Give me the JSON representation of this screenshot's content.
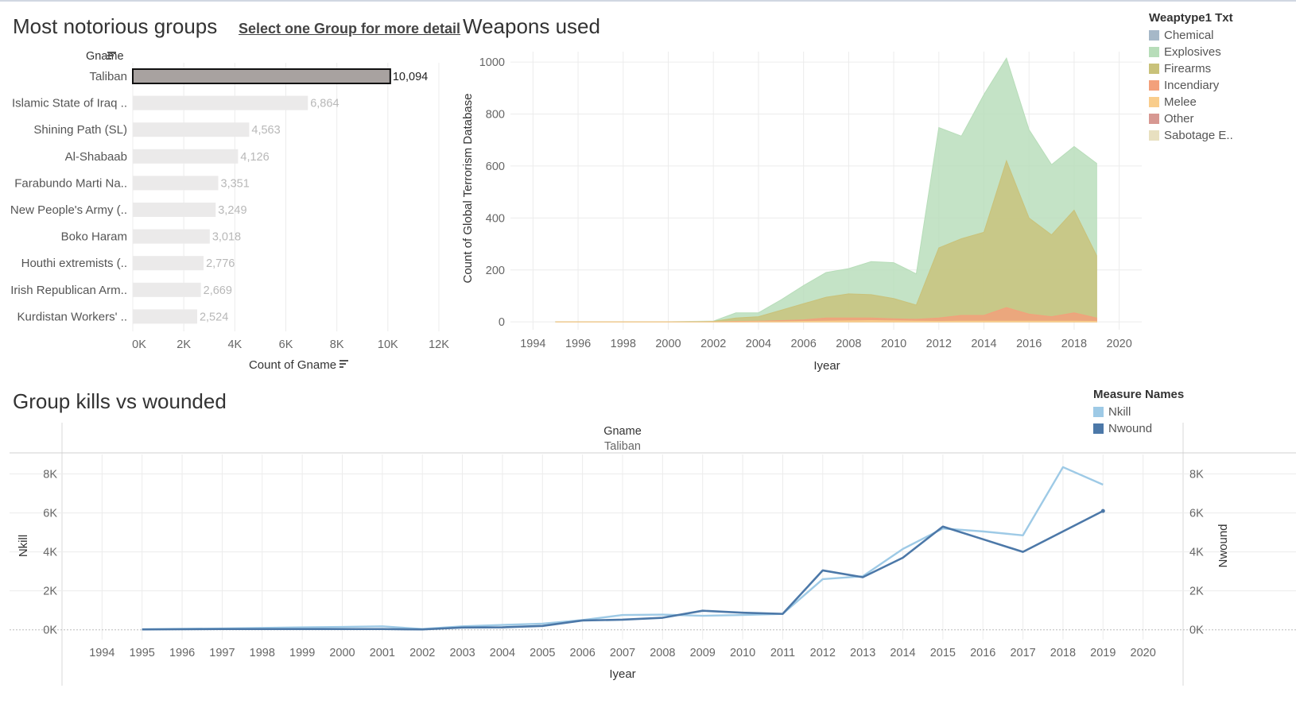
{
  "groups_panel": {
    "title": "Most notorious groups",
    "link": "Select one Group for more detail",
    "column_header": "Gname",
    "xlabel": "Count of Gname"
  },
  "weapons_panel": {
    "title": "Weapons used"
  },
  "kills_panel": {
    "title": "Group kills vs wounded"
  },
  "weapons_legend": {
    "title": "Weaptype1 Txt",
    "items": [
      {
        "label": "Chemical",
        "color": "#a6b8c8"
      },
      {
        "label": "Explosives",
        "color": "#b7ddb9"
      },
      {
        "label": "Firearms",
        "color": "#c9c27a"
      },
      {
        "label": "Incendiary",
        "color": "#f3a07b"
      },
      {
        "label": "Melee",
        "color": "#f9cd8c"
      },
      {
        "label": "Other",
        "color": "#d79892"
      },
      {
        "label": "Sabotage E..",
        "color": "#e8e0c0"
      }
    ]
  },
  "measure_legend": {
    "title": "Measure Names",
    "items": [
      {
        "label": "Nkill",
        "color": "#9ecae6"
      },
      {
        "label": "Nwound",
        "color": "#4c78a8"
      }
    ]
  },
  "chart_data": [
    {
      "type": "bar",
      "orientation": "horizontal",
      "categories": [
        "Taliban",
        "Islamic State of Iraq ..",
        "Shining Path (SL)",
        "Al-Shabaab",
        "Farabundo Marti Na..",
        "New People's Army (..",
        "Boko Haram",
        "Houthi extremists (..",
        "Irish Republican Arm..",
        "Kurdistan Workers' .."
      ],
      "values": [
        10094,
        6864,
        4563,
        4126,
        3351,
        3249,
        3018,
        2776,
        2669,
        2524
      ],
      "value_labels": [
        "10,094",
        "6,864",
        "4,563",
        "4,126",
        "3,351",
        "3,249",
        "3,018",
        "2,776",
        "2,669",
        "2,524"
      ],
      "selected": "Taliban",
      "xlim": [
        0,
        12000
      ],
      "xticks": [
        0,
        2000,
        4000,
        6000,
        8000,
        10000,
        12000
      ],
      "xtick_labels": [
        "0K",
        "2K",
        "4K",
        "6K",
        "8K",
        "10K",
        "12K"
      ],
      "xlabel": "Count of Gname",
      "ylabel": "Gname",
      "bar_color": "#ebeaea",
      "selected_color": "#a8a2a0",
      "grid": true
    },
    {
      "type": "area",
      "stacked": false,
      "x": [
        1995,
        1996,
        1997,
        1998,
        1999,
        2000,
        2001,
        2002,
        2003,
        2004,
        2005,
        2006,
        2007,
        2008,
        2009,
        2010,
        2011,
        2012,
        2013,
        2014,
        2015,
        2016,
        2017,
        2018,
        2019
      ],
      "series": [
        {
          "name": "Explosives",
          "color": "#b7ddb9",
          "values": [
            1,
            1,
            1,
            1,
            1,
            1,
            2,
            3,
            35,
            35,
            85,
            140,
            190,
            205,
            232,
            228,
            185,
            748,
            715,
            875,
            1015,
            740,
            605,
            675,
            610
          ]
        },
        {
          "name": "Firearms",
          "color": "#c9c27a",
          "values": [
            0,
            0,
            0,
            0,
            0,
            0,
            0,
            2,
            15,
            20,
            45,
            70,
            95,
            108,
            105,
            90,
            65,
            285,
            320,
            345,
            620,
            400,
            335,
            430,
            255
          ]
        },
        {
          "name": "Incendiary",
          "color": "#f3a07b",
          "values": [
            0,
            0,
            0,
            0,
            0,
            0,
            0,
            0,
            2,
            3,
            5,
            8,
            15,
            15,
            15,
            12,
            10,
            15,
            25,
            25,
            55,
            30,
            20,
            35,
            15
          ]
        },
        {
          "name": "Melee",
          "color": "#f9cd8c",
          "values": [
            0,
            0,
            0,
            0,
            0,
            0,
            0,
            0,
            0,
            1,
            1,
            2,
            3,
            4,
            5,
            4,
            3,
            2,
            3,
            3,
            3,
            3,
            3,
            3,
            2
          ]
        }
      ],
      "xlim": [
        1993,
        2021
      ],
      "ylim": [
        -30,
        1040
      ],
      "yticks": [
        0,
        200,
        400,
        600,
        800,
        1000
      ],
      "xticks": [
        1994,
        1996,
        1998,
        2000,
        2002,
        2004,
        2006,
        2008,
        2010,
        2012,
        2014,
        2016,
        2018,
        2020
      ],
      "xlabel": "Iyear",
      "ylabel": "Count of Global Terrorism Database",
      "grid": true,
      "legend": "right"
    },
    {
      "type": "line",
      "dual_axis": true,
      "facet_header": "Gname",
      "facet_value": "Taliban",
      "x": [
        1995,
        1996,
        1997,
        1998,
        1999,
        2000,
        2001,
        2002,
        2003,
        2004,
        2005,
        2006,
        2007,
        2008,
        2009,
        2010,
        2011,
        2012,
        2013,
        2014,
        2015,
        2016,
        2017,
        2018,
        2019
      ],
      "series": [
        {
          "name": "Nkill",
          "color": "#9ecae6",
          "values": [
            30,
            50,
            70,
            100,
            130,
            150,
            180,
            40,
            180,
            250,
            320,
            500,
            760,
            780,
            720,
            760,
            820,
            2600,
            2750,
            4150,
            5200,
            5050,
            4850,
            8350,
            7450
          ]
        },
        {
          "name": "Nwound",
          "color": "#4c78a8",
          "values": [
            20,
            30,
            40,
            40,
            40,
            40,
            40,
            20,
            120,
            130,
            200,
            480,
            520,
            620,
            980,
            880,
            820,
            3050,
            2700,
            3700,
            5300,
            4650,
            4000,
            5050,
            6100
          ]
        }
      ],
      "xlim": [
        1993,
        2021
      ],
      "ylim": [
        -500,
        9000
      ],
      "yticks": [
        0,
        2000,
        4000,
        6000,
        8000
      ],
      "ytick_labels": [
        "0K",
        "2K",
        "4K",
        "6K",
        "8K"
      ],
      "xticks": [
        1994,
        1995,
        1996,
        1997,
        1998,
        1999,
        2000,
        2001,
        2002,
        2003,
        2004,
        2005,
        2006,
        2007,
        2008,
        2009,
        2010,
        2011,
        2012,
        2013,
        2014,
        2015,
        2016,
        2017,
        2018,
        2019,
        2020
      ],
      "xlabel": "Iyear",
      "ylabel_left": "Nkill",
      "ylabel_right": "Nwound",
      "grid": true,
      "legend": "top-right"
    }
  ]
}
